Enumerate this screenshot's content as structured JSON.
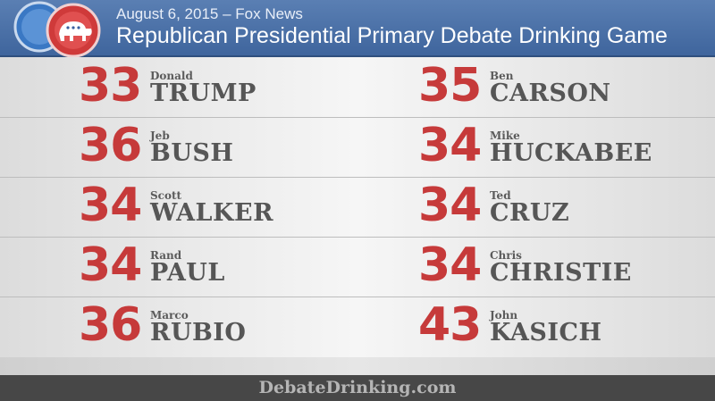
{
  "header": {
    "subtitle": "August 6, 2015 – Fox News",
    "title": "Republican Presidential Primary Debate Drinking Game"
  },
  "colors": {
    "header_blue": "#4a70a8",
    "number_red": "#c63a3a",
    "name_gray": "#565656",
    "footer_gray": "#474747"
  },
  "candidates": [
    {
      "number": "33",
      "first": "Donald",
      "last": "TRUMP"
    },
    {
      "number": "35",
      "first": "Ben",
      "last": "CARSON"
    },
    {
      "number": "36",
      "first": "Jeb",
      "last": "BUSH"
    },
    {
      "number": "34",
      "first": "Mike",
      "last": "HUCKABEE"
    },
    {
      "number": "34",
      "first": "Scott",
      "last": "WALKER"
    },
    {
      "number": "34",
      "first": "Ted",
      "last": "CRUZ"
    },
    {
      "number": "34",
      "first": "Rand",
      "last": "PAUL"
    },
    {
      "number": "34",
      "first": "Chris",
      "last": "CHRISTIE"
    },
    {
      "number": "36",
      "first": "Marco",
      "last": "RUBIO"
    },
    {
      "number": "43",
      "first": "John",
      "last": "KASICH"
    }
  ],
  "footer": {
    "site": "DebateDrinking.com"
  },
  "icons": {
    "logo": "republican-elephant-bottle-caps-icon"
  }
}
